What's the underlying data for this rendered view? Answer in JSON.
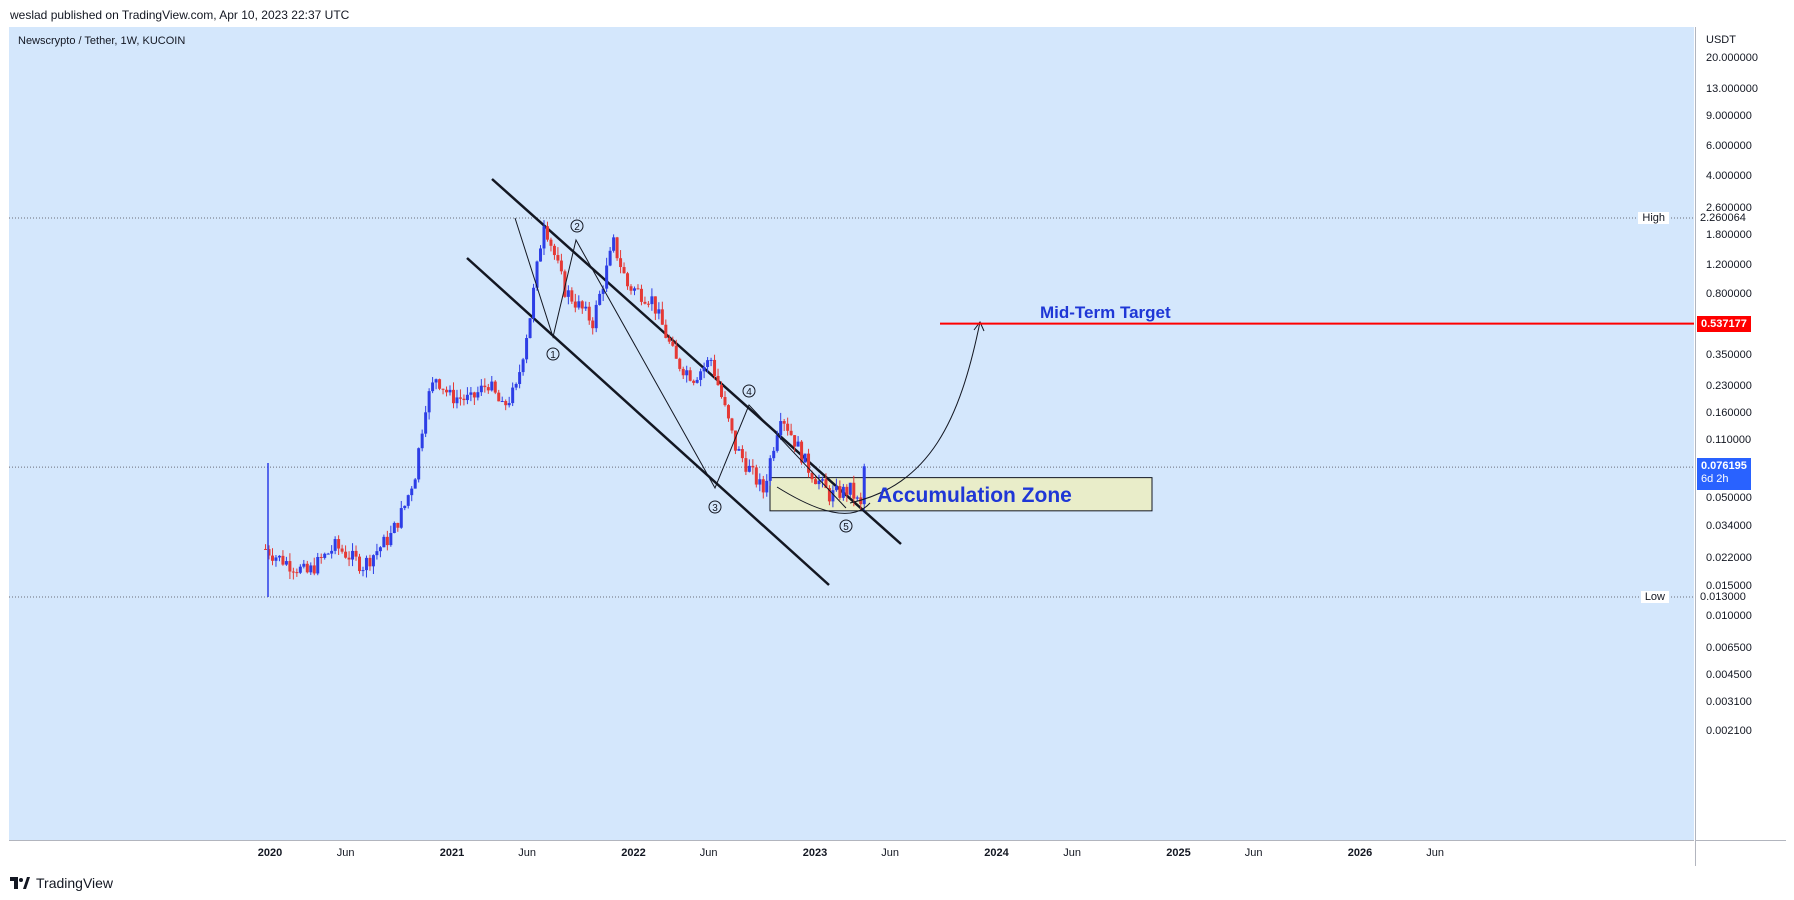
{
  "header": {
    "published": "weslad published on TradingView.com, Apr 10, 2023 22:37 UTC"
  },
  "symbol": {
    "title": "Newscrypto / Tether, 1W, KUCOIN"
  },
  "footer": {
    "logo_text": "TradingView"
  },
  "chart_data": {
    "type": "candlestick",
    "title": "Newscrypto / Tether, 1W, KUCOIN",
    "y_unit": "USDT",
    "y_scale": "log",
    "y_ticks": [
      "20.000000",
      "13.000000",
      "9.000000",
      "6.000000",
      "4.000000",
      "2.600000",
      "1.800000",
      "1.200000",
      "0.800000",
      "0.350000",
      "0.230000",
      "0.160000",
      "0.110000",
      "0.050000",
      "0.034000",
      "0.022000",
      "0.015000",
      "0.010000",
      "0.006500",
      "0.004500",
      "0.003100",
      "0.002100"
    ],
    "x_ticks": [
      {
        "label": "2020",
        "year": true
      },
      {
        "label": "Jun",
        "year": false
      },
      {
        "label": "2021",
        "year": true
      },
      {
        "label": "Jun",
        "year": false
      },
      {
        "label": "2022",
        "year": true
      },
      {
        "label": "Jun",
        "year": false
      },
      {
        "label": "2023",
        "year": true
      },
      {
        "label": "Jun",
        "year": false
      },
      {
        "label": "2024",
        "year": true
      },
      {
        "label": "Jun",
        "year": false
      },
      {
        "label": "2025",
        "year": true
      },
      {
        "label": "Jun",
        "year": false
      },
      {
        "label": "2026",
        "year": true
      },
      {
        "label": "Jun",
        "year": false
      }
    ],
    "high": {
      "label": "High",
      "value": "2.260064"
    },
    "low": {
      "label": "Low",
      "value": "0.013000"
    },
    "last_price": {
      "value": "0.076195",
      "countdown": "6d 2h"
    },
    "target_price": {
      "value": "0.537177"
    },
    "annotations": {
      "target_label": "Mid-Term Target",
      "zone_label": "Accumulation Zone",
      "wave_labels": [
        "1",
        "2",
        "3",
        "4",
        "5"
      ]
    },
    "price_path": [
      [
        "2019-12-23",
        0.025
      ],
      [
        "2020-01-20",
        0.022
      ],
      [
        "2020-03-16",
        0.018
      ],
      [
        "2020-05-11",
        0.026
      ],
      [
        "2020-07-06",
        0.02
      ],
      [
        "2020-08-31",
        0.03
      ],
      [
        "2020-09-28",
        0.045
      ],
      [
        "2020-10-19",
        0.07
      ],
      [
        "2020-11-09",
        0.18
      ],
      [
        "2020-11-30",
        0.26
      ],
      [
        "2020-12-28",
        0.2
      ],
      [
        "2021-02-08",
        0.19
      ],
      [
        "2021-03-15",
        0.24
      ],
      [
        "2021-04-12",
        0.17
      ],
      [
        "2021-05-10",
        0.22
      ],
      [
        "2021-06-07",
        0.6
      ],
      [
        "2021-07-05",
        2.2
      ],
      [
        "2021-08-16",
        0.85
      ],
      [
        "2021-10-11",
        0.55
      ],
      [
        "2021-11-22",
        1.6
      ],
      [
        "2021-12-20",
        0.9
      ],
      [
        "2022-02-07",
        0.75
      ],
      [
        "2022-03-28",
        0.32
      ],
      [
        "2022-05-02",
        0.26
      ],
      [
        "2022-06-06",
        0.33
      ],
      [
        "2022-07-25",
        0.1
      ],
      [
        "2022-09-19",
        0.055
      ],
      [
        "2022-10-24",
        0.16
      ],
      [
        "2022-12-19",
        0.075
      ],
      [
        "2023-01-30",
        0.052
      ],
      [
        "2023-03-13",
        0.056
      ],
      [
        "2023-04-03",
        0.044
      ],
      [
        "2023-04-10",
        0.076
      ]
    ],
    "grid": false
  },
  "colors": {
    "up": "#2d3ee6",
    "down": "#e53935",
    "background": "#d4e7fc",
    "target": "#ff0000",
    "zone": "#e9edc9"
  }
}
